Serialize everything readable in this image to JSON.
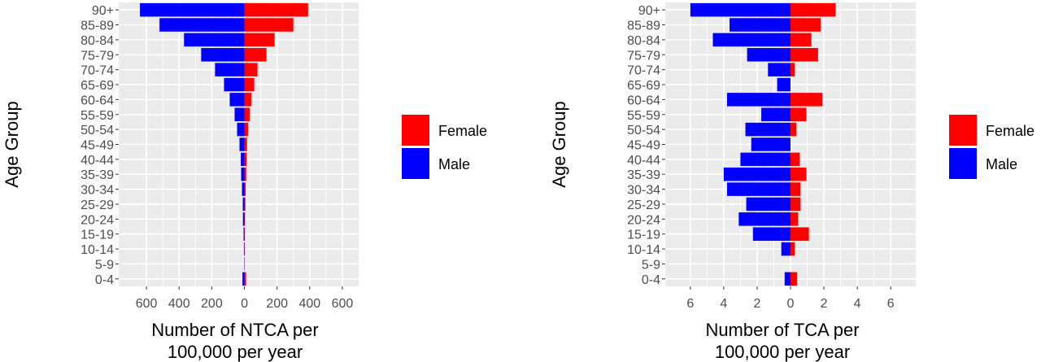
{
  "chart_data": [
    {
      "type": "bar",
      "orientation": "horizontal-diverging",
      "categories": [
        "90+",
        "85-89",
        "80-84",
        "75-79",
        "70-74",
        "65-69",
        "60-64",
        "55-59",
        "50-54",
        "45-49",
        "40-44",
        "35-39",
        "30-34",
        "25-29",
        "20-24",
        "15-19",
        "10-14",
        "5-9",
        "0-4"
      ],
      "series": [
        {
          "name": "Female",
          "color": "#ff0000",
          "values": [
            390,
            300,
            185,
            135,
            80,
            60,
            42,
            32,
            22,
            16,
            14,
            11,
            8,
            6,
            4,
            3,
            2,
            1,
            10
          ]
        },
        {
          "name": "Male",
          "color": "#0000ff",
          "values": [
            640,
            520,
            370,
            265,
            180,
            125,
            90,
            60,
            45,
            30,
            22,
            20,
            15,
            10,
            9,
            5,
            3,
            2,
            12
          ]
        }
      ],
      "xlabel": [
        "Number of NTCA per",
        "100,000 per year"
      ],
      "ylabel": "Age Group",
      "xlim": [
        -770,
        700
      ],
      "xticks": [
        -600,
        -400,
        -200,
        0,
        200,
        400,
        600
      ],
      "xticklabels": [
        "600",
        "400",
        "200",
        "0",
        "200",
        "400",
        "600"
      ],
      "grid": true,
      "legend_position": "right"
    },
    {
      "type": "bar",
      "orientation": "horizontal-diverging",
      "categories": [
        "90+",
        "85-89",
        "80-84",
        "75-79",
        "70-74",
        "65-69",
        "60-64",
        "55-59",
        "50-54",
        "45-49",
        "40-44",
        "35-39",
        "30-34",
        "25-29",
        "20-24",
        "15-19",
        "10-14",
        "5-9",
        "0-4"
      ],
      "series": [
        {
          "name": "Female",
          "color": "#ff0000",
          "values": [
            2.7,
            1.8,
            1.25,
            1.65,
            0.25,
            0,
            1.9,
            0.95,
            0.35,
            0,
            0.55,
            0.95,
            0.6,
            0.6,
            0.45,
            1.1,
            0.25,
            0,
            0.4
          ]
        },
        {
          "name": "Male",
          "color": "#0000ff",
          "values": [
            6.0,
            3.65,
            4.65,
            2.6,
            1.35,
            0.8,
            3.8,
            1.75,
            2.7,
            2.35,
            3.0,
            4.0,
            3.8,
            2.65,
            3.1,
            2.25,
            0.55,
            0,
            0.35
          ]
        }
      ],
      "xlabel": [
        "Number of TCA per",
        "100,000 per year"
      ],
      "ylabel": "Age Group",
      "xlim": [
        -7.5,
        7.5
      ],
      "xticks": [
        -6,
        -4,
        -2,
        0,
        2,
        4,
        6
      ],
      "xticklabels": [
        "6",
        "4",
        "2",
        "0",
        "2",
        "4",
        "6"
      ],
      "grid": true,
      "legend_position": "right"
    }
  ]
}
